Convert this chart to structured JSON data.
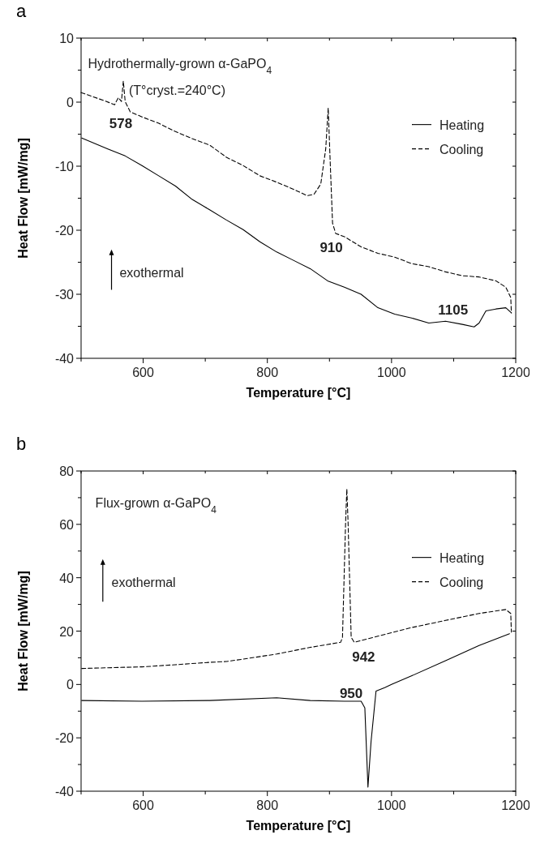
{
  "chart_data": [
    {
      "type": "line",
      "title": "a",
      "xlabel": "Temperature [°C]",
      "ylabel": "Heat Flow [mW/mg]",
      "xlim": [
        500,
        1200
      ],
      "ylim": [
        -40,
        10
      ],
      "xticks": [
        {
          "value": 500,
          "label": null
        },
        600,
        {
          "value": 700,
          "label": null
        },
        800,
        {
          "value": 900,
          "label": null
        },
        1000,
        {
          "value": 1100,
          "label": null
        },
        1200
      ],
      "yticks": [
        -40,
        {
          "value": -35,
          "label": null
        },
        -30,
        {
          "value": -25,
          "label": null
        },
        -20,
        {
          "value": -15,
          "label": null
        },
        -10,
        {
          "value": -5,
          "label": null
        },
        0,
        {
          "value": 5,
          "label": null
        },
        10
      ],
      "grid": false,
      "legend": "right",
      "annotations": [
        "Hydrothermally-grown α-GaPO$_{4}$",
        "(T°cryst.=240°C)",
        "exothermal",
        "578",
        "910",
        "1105"
      ],
      "series": [
        {
          "name": "Heating",
          "color": "#000000",
          "line_style": "solid",
          "x": [
            501,
            543,
            571,
            598,
            625,
            652,
            679,
            707,
            734,
            761,
            788,
            815,
            842,
            869,
            897,
            924,
            951,
            978,
            1005,
            1032,
            1060,
            1087,
            1114,
            1133,
            1141,
            1152,
            1168,
            1184,
            1193
          ],
          "values": [
            -5.6,
            -7.3,
            -8.4,
            -9.9,
            -11.5,
            -13.1,
            -15.2,
            -16.8,
            -18.4,
            -19.9,
            -21.8,
            -23.4,
            -24.7,
            -26.0,
            -27.9,
            -28.9,
            -30.0,
            -32.1,
            -33.1,
            -33.7,
            -34.5,
            -34.2,
            -34.7,
            -35.1,
            -34.5,
            -32.6,
            -32.3,
            -32.1,
            -32.9
          ]
        },
        {
          "name": "Cooling",
          "color": "#000000",
          "line_style": "dashed",
          "x": [
            500,
            538,
            554,
            560,
            565,
            568,
            571,
            579,
            598,
            625,
            652,
            679,
            707,
            734,
            761,
            788,
            815,
            842,
            864,
            875,
            886,
            894,
            898,
            901,
            905,
            910,
            924,
            951,
            978,
            1005,
            1032,
            1060,
            1087,
            1114,
            1141,
            1168,
            1184,
            1192,
            1193
          ],
          "values": [
            1.5,
            0.2,
            -0.4,
            0.7,
            0.1,
            3.3,
            0.1,
            -1.5,
            -2.3,
            -3.3,
            -4.6,
            -5.7,
            -6.7,
            -8.6,
            -9.9,
            -11.5,
            -12.5,
            -13.6,
            -14.6,
            -14.4,
            -12.8,
            -7.3,
            -0.9,
            -8.8,
            -18.9,
            -20.5,
            -21.0,
            -22.6,
            -23.6,
            -24.2,
            -25.2,
            -25.7,
            -26.5,
            -27.1,
            -27.3,
            -27.9,
            -28.9,
            -30.5,
            -32.9
          ]
        }
      ]
    },
    {
      "type": "line",
      "title": "b",
      "xlabel": "Temperature [°C]",
      "ylabel": "Heat Flow [mW/mg]",
      "xlim": [
        500,
        1200
      ],
      "ylim": [
        -40,
        80
      ],
      "xticks": [
        {
          "value": 500,
          "label": null
        },
        600,
        {
          "value": 700,
          "label": null
        },
        800,
        {
          "value": 900,
          "label": null
        },
        1000,
        {
          "value": 1100,
          "label": null
        },
        1200
      ],
      "yticks": [
        -40,
        {
          "value": -30,
          "label": null
        },
        -20,
        {
          "value": -10,
          "label": null
        },
        0,
        {
          "value": 10,
          "label": null
        },
        20,
        {
          "value": 30,
          "label": null
        },
        40,
        {
          "value": 50,
          "label": null
        },
        60,
        {
          "value": 70,
          "label": null
        },
        80
      ],
      "grid": false,
      "legend": "right",
      "annotations": [
        "Flux-grown α-GaPO$_{4}$",
        "exothermal",
        "942",
        "950"
      ],
      "series": [
        {
          "name": "Heating",
          "color": "#000000",
          "line_style": "solid",
          "x": [
            501,
            598,
            707,
            815,
            869,
            924,
            951,
            957,
            962,
            967,
            975,
            989,
            1000,
            1032,
            1087,
            1141,
            1190
          ],
          "values": [
            -6.0,
            -6.3,
            -6.0,
            -5.0,
            -6.0,
            -6.3,
            -6.3,
            -8.8,
            -38.5,
            -21.4,
            -2.5,
            -1.2,
            0,
            3.2,
            8.9,
            14.6,
            19.0
          ]
        },
        {
          "name": "Cooling",
          "color": "#000000",
          "line_style": "dashed",
          "x": [
            501,
            598,
            652,
            707,
            734,
            761,
            815,
            869,
            918,
            921,
            926,
            928,
            930,
            935,
            940,
            978,
            1032,
            1087,
            1141,
            1184,
            1192,
            1193
          ],
          "values": [
            6.0,
            6.6,
            7.4,
            8.3,
            8.6,
            9.5,
            11.4,
            13.9,
            15.8,
            17.7,
            60.7,
            73.3,
            60.7,
            17.7,
            15.8,
            18.1,
            21.3,
            24.0,
            26.6,
            28.1,
            26.6,
            19.6
          ]
        }
      ]
    }
  ]
}
